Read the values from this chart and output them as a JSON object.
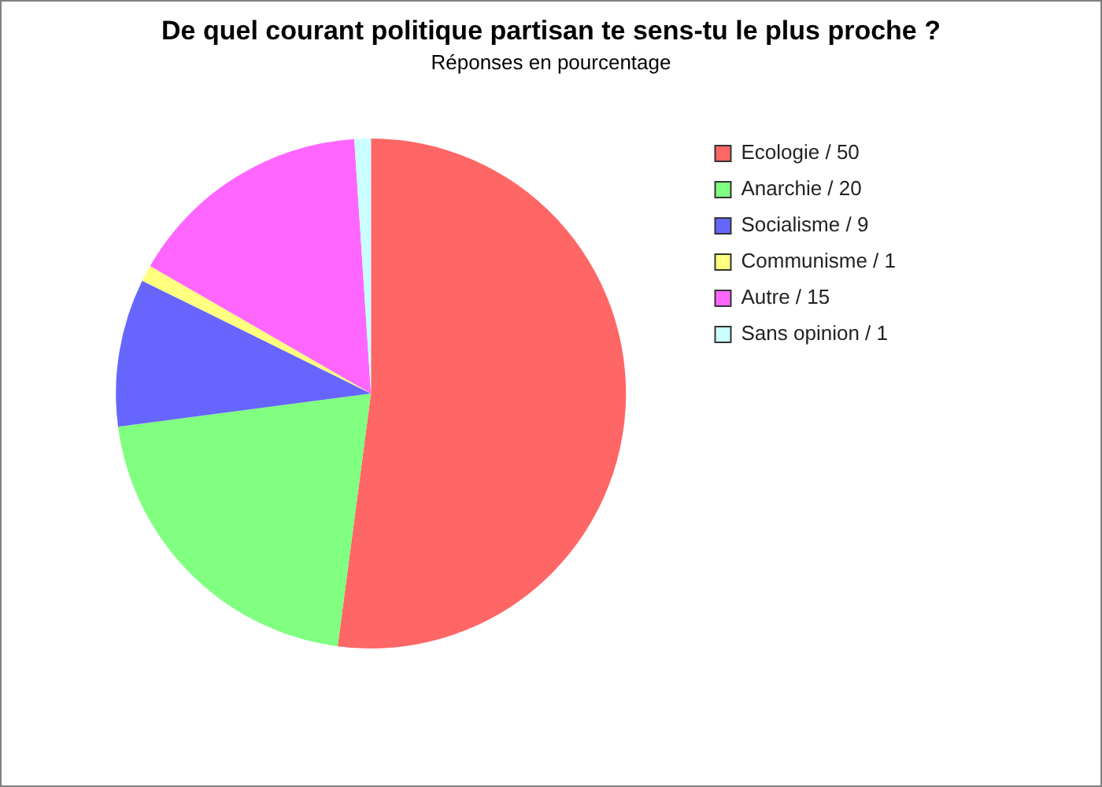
{
  "chart_data": {
    "type": "pie",
    "title": "De quel courant politique partisan te sens-tu le plus proche ?",
    "subtitle": "Réponses en pourcentage",
    "categories": [
      "Ecologie / 50",
      "Anarchie / 20",
      "Socialisme / 9",
      "Communisme / 1",
      "Autre / 15",
      "Sans opinion / 1"
    ],
    "values": [
      50,
      20,
      9,
      1,
      15,
      1
    ],
    "colors": [
      "#ff6666",
      "#80ff80",
      "#6666ff",
      "#ffff80",
      "#ff66ff",
      "#ccffff"
    ],
    "legend": "top right"
  }
}
